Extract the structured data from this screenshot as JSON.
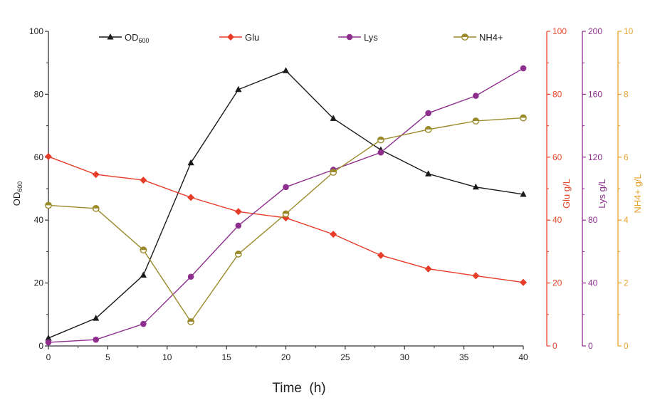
{
  "chart_data": {
    "type": "line",
    "xlabel": "Time  (h)",
    "x": [
      0,
      4,
      8,
      12,
      16,
      20,
      24,
      28,
      32,
      36,
      40
    ],
    "xlim": [
      0,
      40
    ],
    "xticks": [
      0,
      5,
      10,
      15,
      20,
      25,
      30,
      35,
      40
    ],
    "grid": false,
    "legend_position": "top",
    "axes": [
      {
        "id": "od",
        "label_main": "OD",
        "label_sub": "600",
        "ylim": [
          0,
          100
        ],
        "ticks": [
          0,
          20,
          40,
          60,
          80,
          100
        ],
        "color": "#333333",
        "side": "left"
      },
      {
        "id": "glu",
        "label": "Glu g/L",
        "ylim": [
          0,
          100
        ],
        "ticks": [
          0,
          20,
          40,
          60,
          80,
          100
        ],
        "color": "#e8452c",
        "side": "right"
      },
      {
        "id": "lys",
        "label": "Lys g/L",
        "ylim": [
          0,
          200
        ],
        "ticks": [
          0,
          40,
          80,
          120,
          160,
          200
        ],
        "color": "#8e2f8e",
        "side": "right"
      },
      {
        "id": "nh4",
        "label": "NH4+ g/L",
        "ylim": [
          0,
          10
        ],
        "ticks": [
          0,
          2,
          4,
          6,
          8,
          10
        ],
        "color": "#e8a22c",
        "side": "right"
      }
    ],
    "series": [
      {
        "name_main": "OD",
        "name_sub": "600",
        "axis": "od",
        "color": "#1a1a1a",
        "marker": "triangle",
        "values": [
          2.5,
          8.8,
          22.5,
          58.2,
          81.5,
          87.5,
          72.3,
          62.3,
          54.7,
          50.5,
          48.2
        ]
      },
      {
        "name": "Glu",
        "axis": "glu",
        "color": "#e63c28",
        "marker": "diamond",
        "values": [
          60.2,
          54.5,
          52.7,
          47.2,
          42.7,
          40.7,
          35.5,
          28.8,
          24.5,
          22.3,
          20.2
        ]
      },
      {
        "name": "Lys",
        "axis": "lys",
        "color": "#8e2f8e",
        "marker": "circle",
        "values": [
          2.3,
          4.0,
          14.0,
          44.0,
          76.5,
          101.0,
          112.0,
          123.0,
          148.0,
          159.0,
          176.5
        ]
      },
      {
        "name": "NH4+",
        "axis": "nh4",
        "color": "#9a8a2a",
        "marker": "half-circle",
        "values": [
          4.47,
          4.37,
          3.05,
          0.77,
          2.92,
          4.2,
          5.52,
          6.55,
          6.88,
          7.15,
          7.25
        ]
      }
    ]
  }
}
